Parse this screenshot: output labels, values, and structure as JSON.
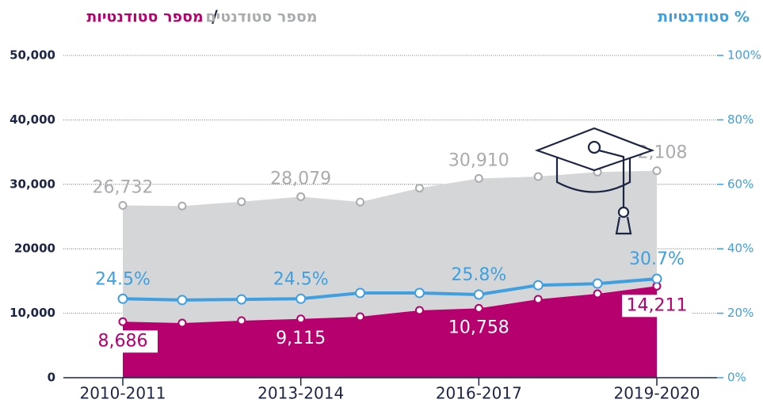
{
  "chart_data": {
    "type": "line",
    "title_separator": "/",
    "categories": [
      "2010-2011",
      null,
      null,
      "2013-2014",
      null,
      null,
      "2016-2017",
      null,
      null,
      "2019-2020"
    ],
    "ylim": [
      0,
      50000
    ],
    "yticks": [
      0,
      {
        "value": 10000,
        "label": "10,000"
      },
      {
        "value": 20000,
        "label": "20000"
      },
      {
        "value": 30000,
        "label": "30,000"
      },
      {
        "value": 40000,
        "label": "40,000"
      },
      {
        "value": 50000,
        "label": "50,000"
      }
    ],
    "y2lim": [
      0,
      100
    ],
    "y2ticks": [
      {
        "value": 0,
        "label": "0%"
      },
      {
        "value": 20,
        "label": "20%"
      },
      {
        "value": 40,
        "label": "40%"
      },
      {
        "value": 60,
        "label": "60%"
      },
      {
        "value": 80,
        "label": "80%"
      },
      {
        "value": 100,
        "label": "100%"
      }
    ],
    "grid": true,
    "series": [
      {
        "name": "מספר סטודנטים",
        "color": "#a9abae",
        "fill": "#d5d6d8",
        "values": [
          26732,
          26640,
          27311,
          28079,
          27257,
          29412,
          30910,
          31207,
          31903,
          32108
        ],
        "value_labels": [
          "26,732",
          null,
          null,
          "28,079",
          null,
          null,
          "30,910",
          null,
          null,
          "32,108"
        ]
      },
      {
        "name": "מספר סטודנטיות",
        "color": "#b5006e",
        "fill": "#b5006e",
        "values": [
          8686,
          8480,
          8850,
          9115,
          9460,
          10440,
          10758,
          12160,
          13020,
          14211
        ],
        "value_labels": [
          "8,686",
          null,
          null,
          "9,115",
          null,
          null,
          "10,758",
          null,
          null,
          "14,211"
        ]
      },
      {
        "name": "% סטודנטיות",
        "color": "#3f9fe0",
        "axis": "y2",
        "values": [
          24.5,
          24.1,
          24.3,
          24.5,
          26.3,
          26.3,
          25.8,
          28.7,
          29.2,
          30.7
        ],
        "value_labels": [
          "24.5%",
          null,
          null,
          "24.5%",
          null,
          null,
          "25.8%",
          null,
          null,
          "30.7%"
        ]
      }
    ]
  }
}
